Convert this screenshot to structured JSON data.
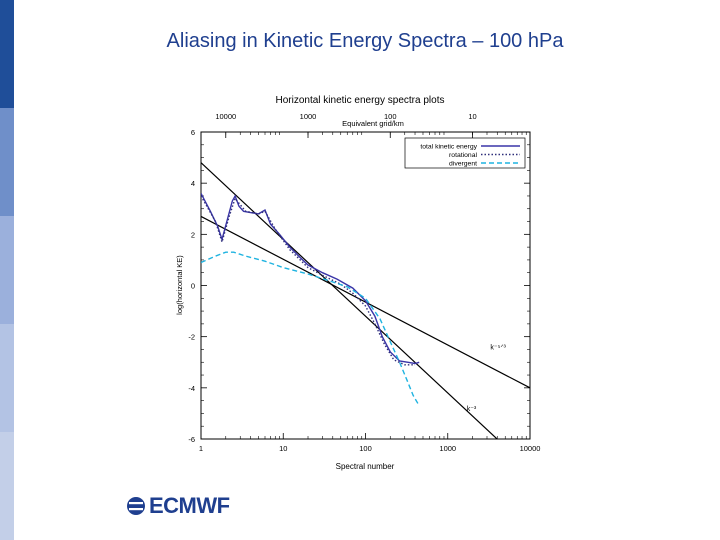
{
  "slide": {
    "title": "Aliasing in Kinetic Energy Spectra – 100 hPa",
    "logo_text": "ECMWF",
    "colors": {
      "title": "#1f3f8f",
      "sidebar_dark": "#1f4e99",
      "sidebar_mid": "#6f8fc9",
      "sidebar_light": "#c3cfe8"
    }
  },
  "chart_data": {
    "type": "line",
    "title": "Horizontal kinetic energy spectra plots",
    "xlabel": "Spectral number",
    "ylabel": "log(horizontal KE)",
    "top_axis_label": "Equivalent grid/km",
    "xscale": "log",
    "xlim": [
      1,
      10000
    ],
    "ylim": [
      -6,
      6
    ],
    "x_ticks": [
      {
        "v": 1,
        "label": "1"
      },
      {
        "v": 10,
        "label": "10"
      },
      {
        "v": 100,
        "label": "100"
      },
      {
        "v": 1000,
        "label": "1000"
      },
      {
        "v": 10000,
        "label": "10000"
      }
    ],
    "y_ticks": [
      {
        "v": 6,
        "label": "6"
      },
      {
        "v": 4,
        "label": "4"
      },
      {
        "v": 2,
        "label": "2"
      },
      {
        "v": 0,
        "label": "0"
      },
      {
        "v": -2,
        "label": "-2"
      },
      {
        "v": -4,
        "label": "-4"
      },
      {
        "v": -6,
        "label": "-6"
      }
    ],
    "top_ticks": [
      {
        "v": 2.0,
        "label": "10000"
      },
      {
        "v": 20,
        "label": "1000"
      },
      {
        "v": 200,
        "label": "100"
      },
      {
        "v": 2000,
        "label": "10"
      }
    ],
    "legend_position": "top-right",
    "series": [
      {
        "name": "total kinetic energy",
        "color": "#3a35a8",
        "dash": "",
        "points": [
          [
            1,
            3.6
          ],
          [
            1.3,
            2.9
          ],
          [
            1.6,
            2.3
          ],
          [
            1.8,
            1.8
          ],
          [
            2.1,
            2.6
          ],
          [
            2.4,
            3.3
          ],
          [
            2.6,
            3.5
          ],
          [
            2.9,
            3.1
          ],
          [
            3.3,
            2.9
          ],
          [
            4,
            2.85
          ],
          [
            5,
            2.8
          ],
          [
            6,
            2.95
          ],
          [
            7,
            2.4
          ],
          [
            9,
            2.0
          ],
          [
            12,
            1.5
          ],
          [
            16,
            1.1
          ],
          [
            20,
            0.8
          ],
          [
            30,
            0.5
          ],
          [
            45,
            0.25
          ],
          [
            70,
            -0.1
          ],
          [
            100,
            -0.6
          ],
          [
            130,
            -1.2
          ],
          [
            160,
            -2.0
          ],
          [
            200,
            -2.6
          ],
          [
            260,
            -2.95
          ],
          [
            330,
            -3.0
          ],
          [
            400,
            -3.05
          ],
          [
            450,
            -3.0
          ]
        ]
      },
      {
        "name": "rotational",
        "color": "#2e2e7a",
        "dash": "1.5,2",
        "points": [
          [
            1,
            3.5
          ],
          [
            1.5,
            2.5
          ],
          [
            1.8,
            1.7
          ],
          [
            2.2,
            2.7
          ],
          [
            2.6,
            3.4
          ],
          [
            3.5,
            2.9
          ],
          [
            5,
            2.8
          ],
          [
            6,
            2.9
          ],
          [
            8,
            2.2
          ],
          [
            12,
            1.4
          ],
          [
            20,
            0.7
          ],
          [
            30,
            0.4
          ],
          [
            50,
            0.05
          ],
          [
            70,
            -0.3
          ],
          [
            100,
            -0.8
          ],
          [
            130,
            -1.5
          ],
          [
            170,
            -2.3
          ],
          [
            220,
            -2.9
          ],
          [
            300,
            -3.1
          ],
          [
            400,
            -3.1
          ]
        ]
      },
      {
        "name": "divergent",
        "color": "#1fb3e0",
        "dash": "5,3",
        "points": [
          [
            1,
            0.9
          ],
          [
            1.5,
            1.15
          ],
          [
            2,
            1.3
          ],
          [
            2.5,
            1.3
          ],
          [
            3.5,
            1.15
          ],
          [
            6,
            0.95
          ],
          [
            10,
            0.7
          ],
          [
            20,
            0.45
          ],
          [
            35,
            0.2
          ],
          [
            60,
            -0.05
          ],
          [
            100,
            -0.5
          ],
          [
            150,
            -1.3
          ],
          [
            200,
            -2.2
          ],
          [
            260,
            -3.0
          ],
          [
            320,
            -3.7
          ],
          [
            380,
            -4.3
          ],
          [
            450,
            -4.7
          ]
        ]
      }
    ],
    "reference_lines": [
      {
        "label": "k⁻⁵ᐟ³",
        "color": "#000000",
        "points": [
          [
            1,
            2.7
          ],
          [
            10000,
            -4.0
          ]
        ],
        "label_at": [
          3300,
          -2.5
        ]
      },
      {
        "label": "k⁻³",
        "color": "#000000",
        "points": [
          [
            1,
            4.8
          ],
          [
            10000,
            -7.2
          ]
        ],
        "label_at": [
          1700,
          -4.9
        ]
      }
    ]
  }
}
